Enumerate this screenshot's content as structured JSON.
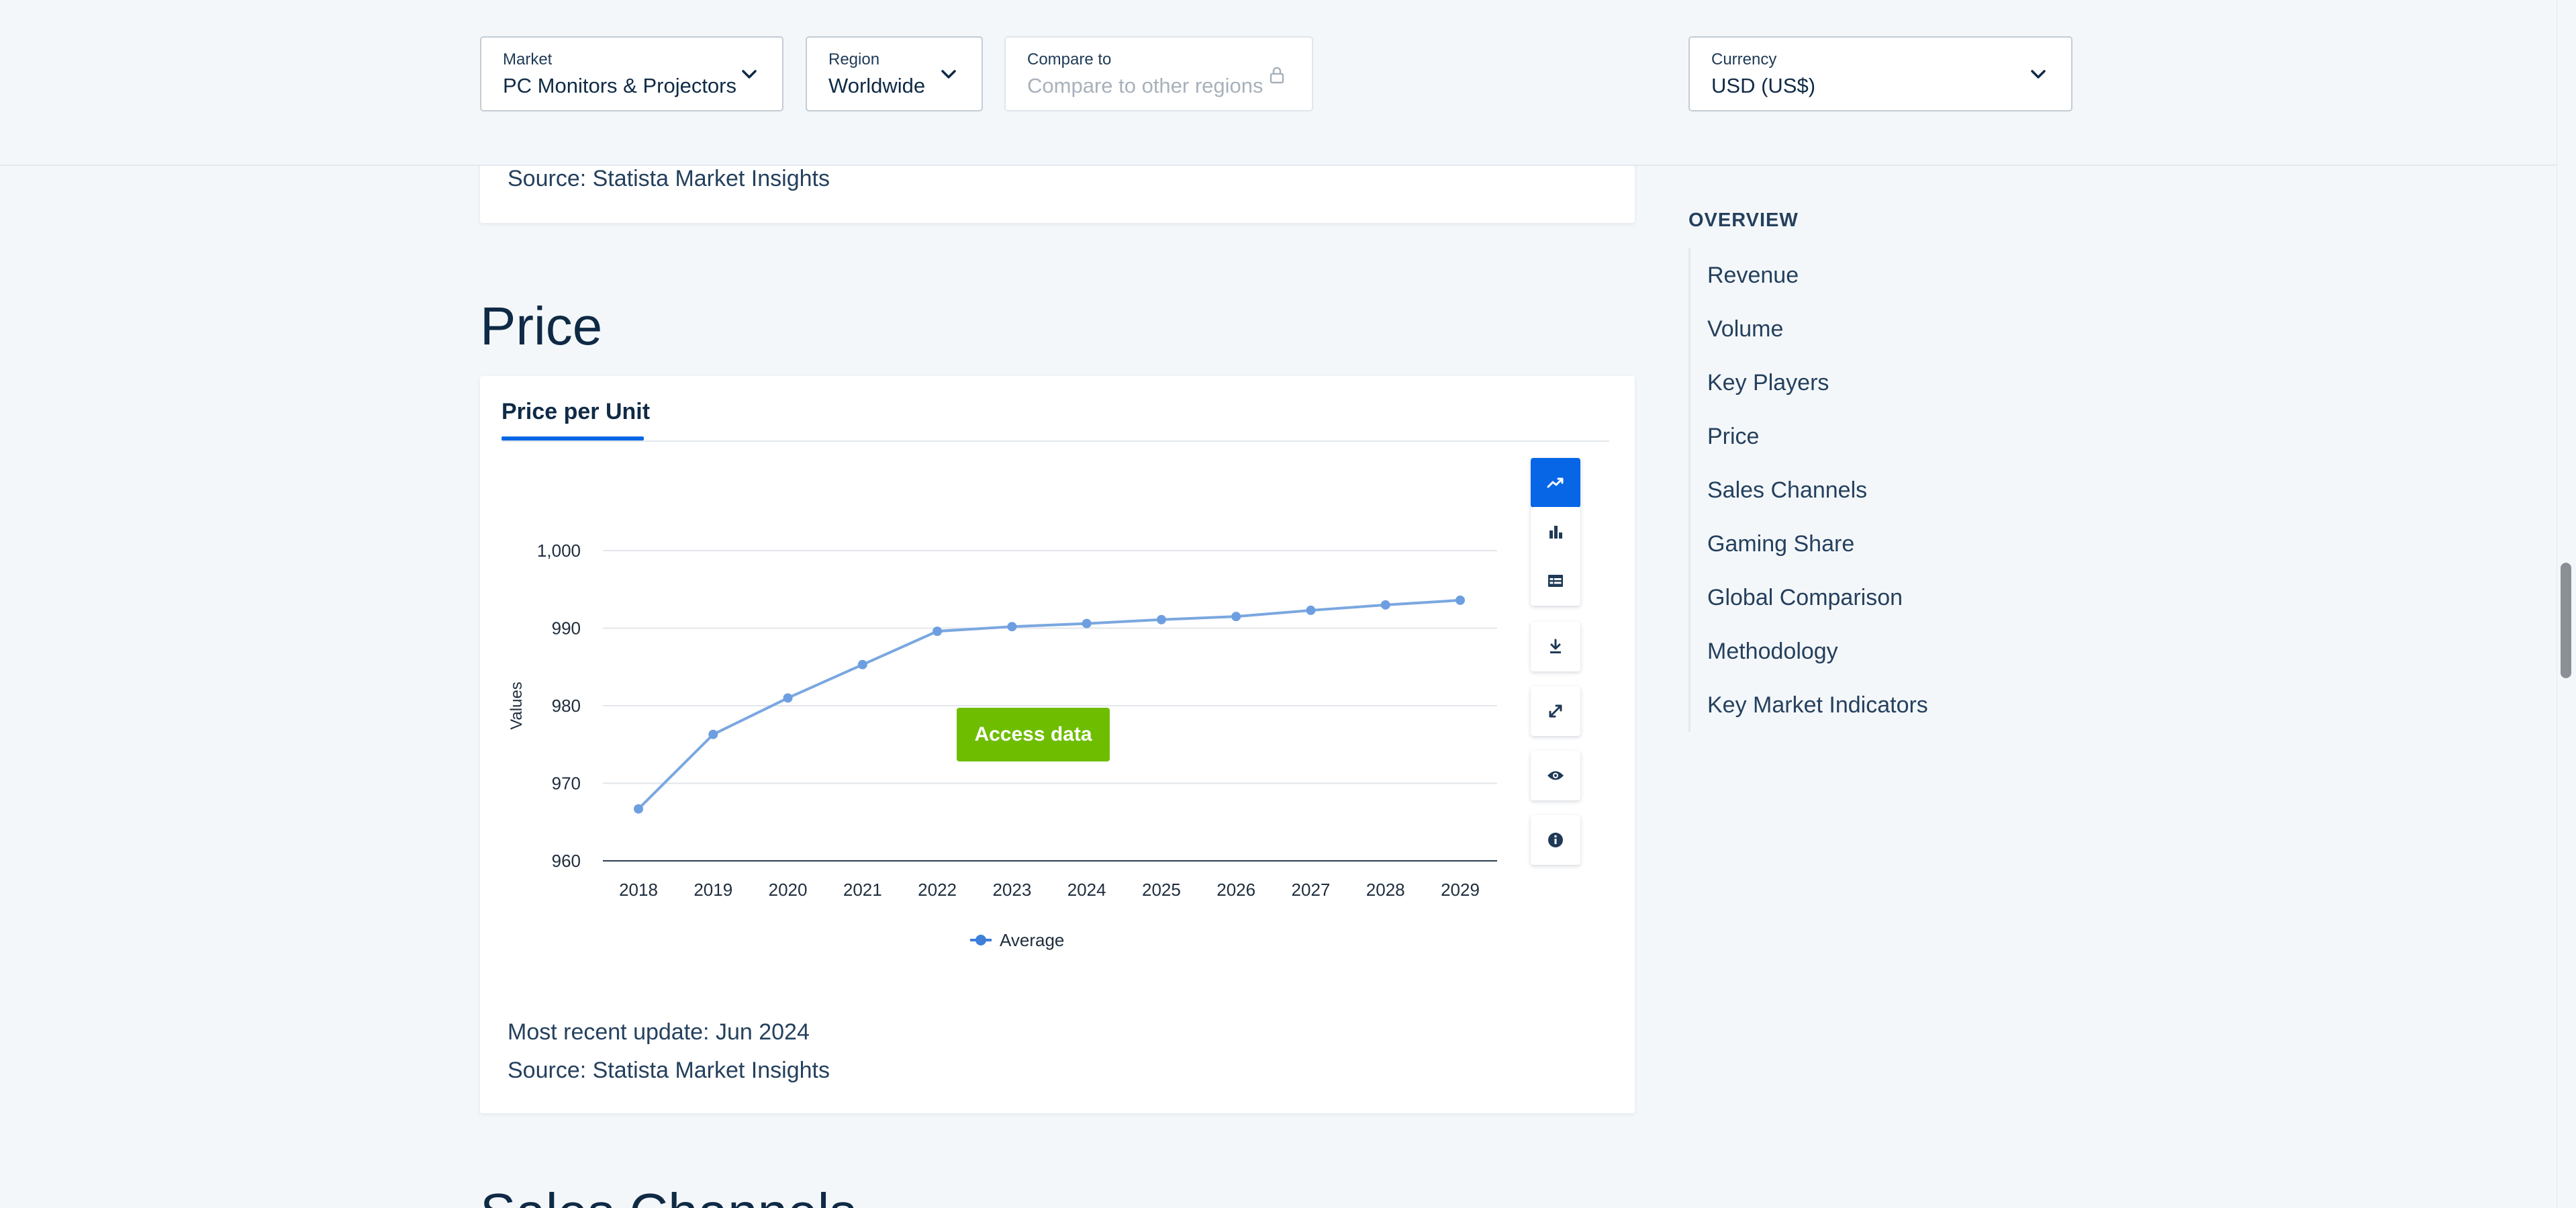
{
  "filters": {
    "market": {
      "label": "Market",
      "value": "PC Monitors & Projectors"
    },
    "region": {
      "label": "Region",
      "value": "Worldwide"
    },
    "compare": {
      "label": "Compare to",
      "placeholder": "Compare to other regions"
    },
    "currency": {
      "label": "Currency",
      "value": "USD (US$)"
    }
  },
  "previous_card": {
    "source": "Source: Statista Market Insights"
  },
  "price_section": {
    "title": "Price",
    "tab": "Price per Unit",
    "access_button": "Access data",
    "update": "Most recent update: Jun 2024",
    "source": "Source: Statista Market Insights"
  },
  "chart_data": {
    "type": "line",
    "title": "",
    "xlabel": "",
    "ylabel": "Values",
    "x": [
      "2018",
      "2019",
      "2020",
      "2021",
      "2022",
      "2023",
      "2024",
      "2025",
      "2026",
      "2027",
      "2028",
      "2029"
    ],
    "series": [
      {
        "name": "Average",
        "values": [
          966.7,
          976.3,
          981.0,
          985.3,
          989.6,
          990.2,
          990.6,
          991.1,
          991.5,
          992.3,
          993.0,
          993.6
        ]
      }
    ],
    "ylim": [
      960,
      1000
    ],
    "yticks": [
      960,
      970,
      980,
      990,
      1000
    ],
    "ytick_labels": [
      "960",
      "970",
      "980",
      "990",
      "1,000"
    ],
    "grid": true,
    "legend_position": "bottom-center",
    "colors": {
      "line": "#7aa7e0",
      "point": "#6d9fe0",
      "legend_marker": "#3d7fdb"
    }
  },
  "chart_tools": [
    "line-chart-icon",
    "bar-chart-icon",
    "table-icon",
    "download-icon",
    "expand-icon",
    "eye-icon",
    "info-icon"
  ],
  "sidebar": {
    "title": "OVERVIEW",
    "items": [
      "Revenue",
      "Volume",
      "Key Players",
      "Price",
      "Sales Channels",
      "Gaming Share",
      "Global Comparison",
      "Methodology",
      "Key Market Indicators"
    ]
  },
  "next_section": {
    "title": "Sales Channels"
  },
  "colors": {
    "accent": "#0666e5",
    "access_button": "#6ebd00",
    "text": "#0f2a45"
  }
}
